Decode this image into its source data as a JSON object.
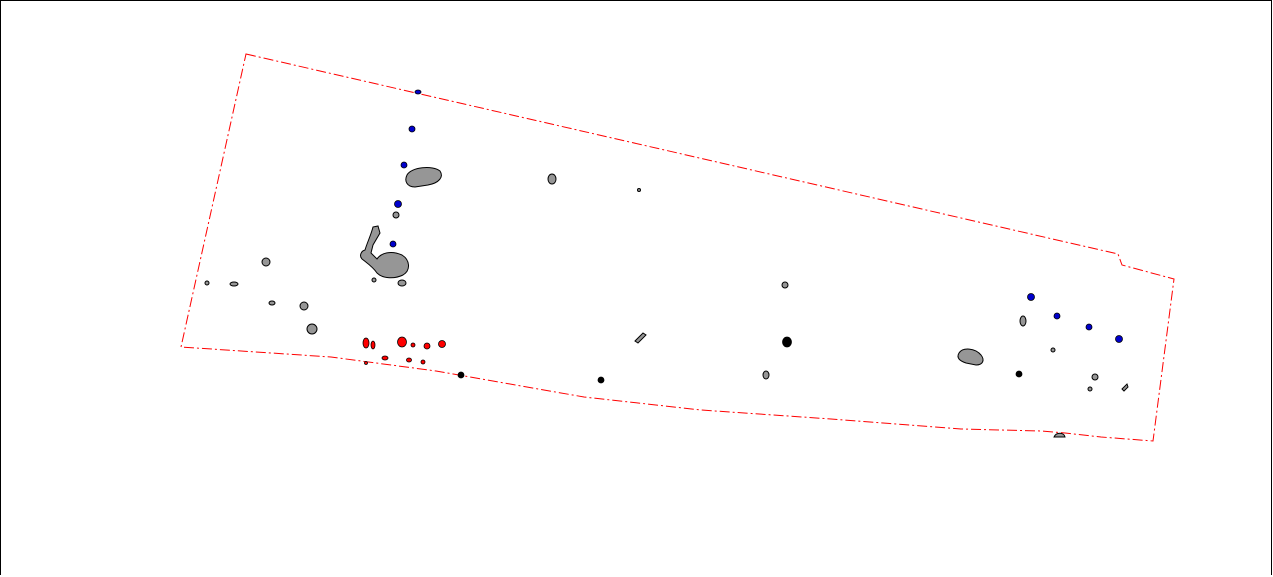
{
  "map": {
    "boundary": {
      "stroke": "#ff0000",
      "style": "dash-dot"
    },
    "feature_styles": {
      "grey": {
        "fill": "#969696",
        "stroke": "#000000"
      },
      "blue": {
        "fill": "#0000cc",
        "stroke": "#000000"
      },
      "red": {
        "fill": "#ff0000",
        "stroke": "#000000"
      },
      "black": {
        "fill": "#000000",
        "stroke": "#000000"
      }
    },
    "background": "#ffffff"
  }
}
